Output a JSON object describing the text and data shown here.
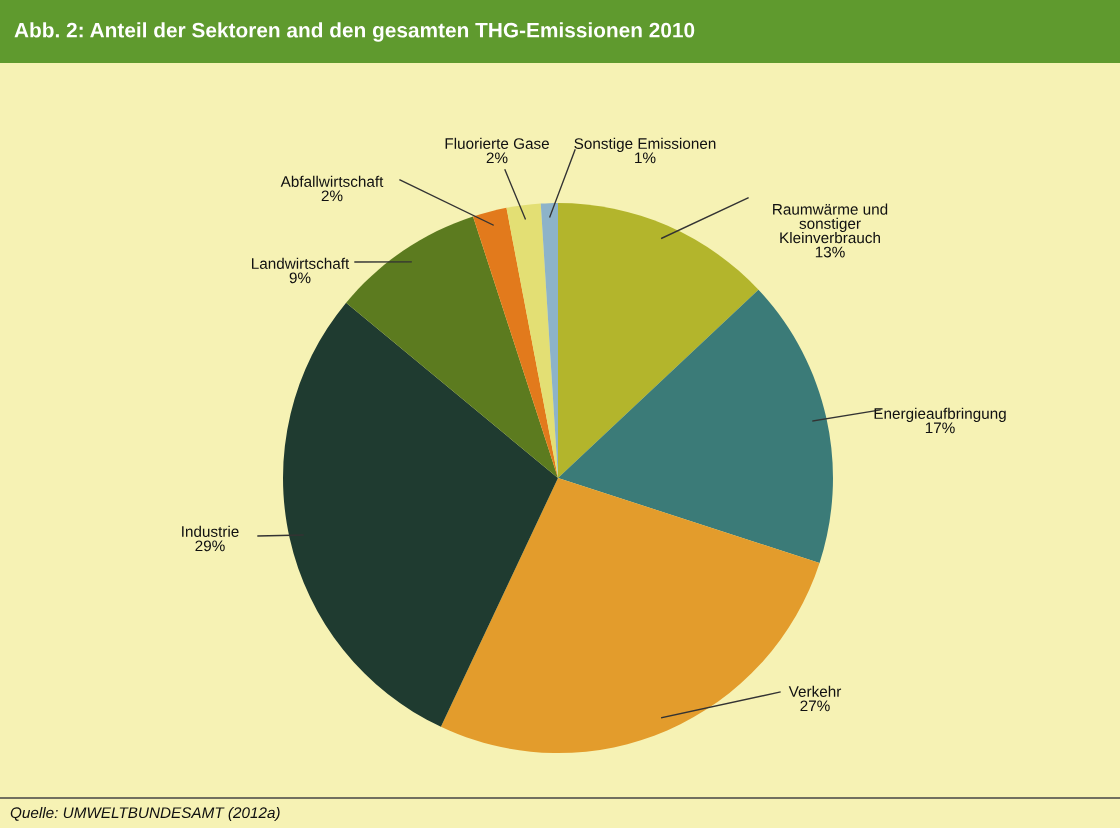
{
  "chart_data": {
    "type": "pie",
    "title": "Abb. 2: Anteil der Sektoren and den gesamten THG-Emissionen 2010",
    "categories": [
      "Raumwärme und\nsonstiger\nKleinverbrauch",
      "Energieaufbringung",
      "Verkehr",
      "Industrie",
      "Landwirtschaft",
      "Abfallwirtschaft",
      "Fluorierte Gase",
      "Sonstige Emissionen"
    ],
    "values": [
      13,
      17,
      27,
      29,
      9,
      2,
      2,
      1
    ],
    "value_labels": [
      "13%",
      "17%",
      "27%",
      "29%",
      "9%",
      "2%",
      "2%",
      "1%"
    ],
    "colors": [
      "#b3b52c",
      "#3b7b78",
      "#e39c2c",
      "#1f3b30",
      "#5c7b1f",
      "#e27a1c",
      "#e3df74",
      "#8db3c9"
    ],
    "annotations": [
      "Quelle: UMWELTBUNDESAMT (2012a)"
    ]
  }
}
